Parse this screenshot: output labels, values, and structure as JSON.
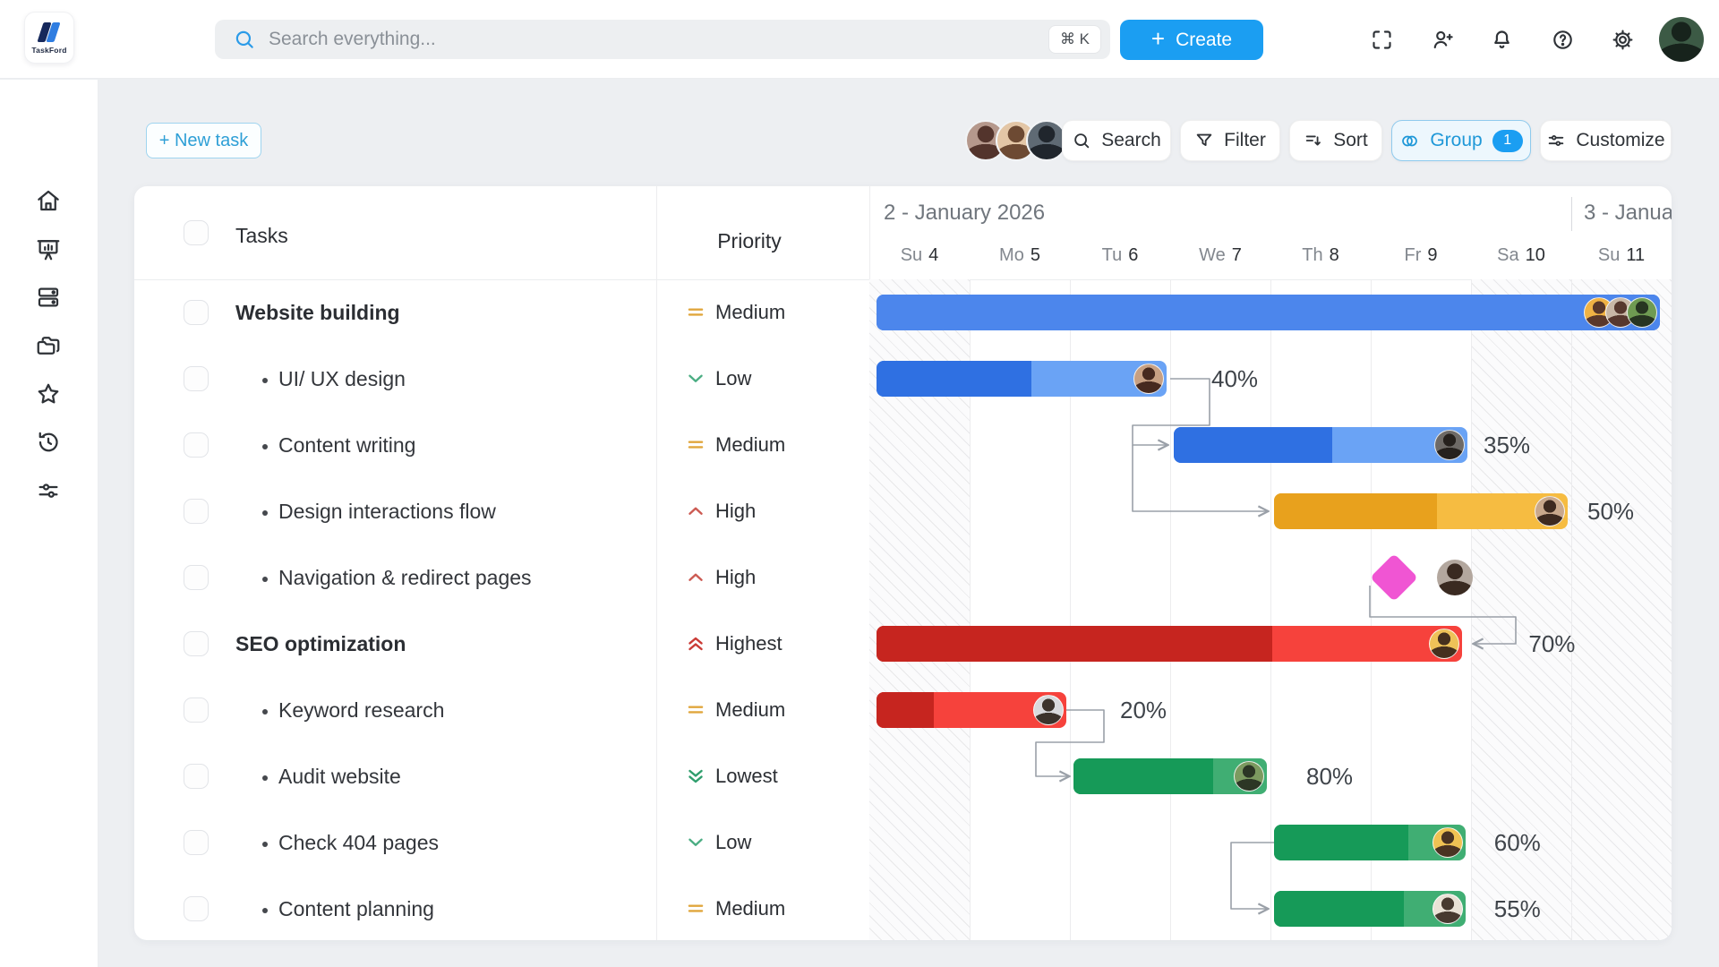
{
  "app": {
    "name": "TaskFord"
  },
  "topbar": {
    "search": {
      "placeholder": "Search everything...",
      "shortcut": "⌘ K",
      "icon": "search-icon"
    },
    "create_label": "Create",
    "action_icons": [
      "fullscreen-icon",
      "add-user-icon",
      "notifications-bell-icon",
      "help-icon",
      "settings-gear-icon"
    ],
    "user_avatar": {
      "bg": "#3c5a45",
      "fg": "#17231c"
    }
  },
  "sidebar": {
    "items": [
      "home",
      "dashboard",
      "boards",
      "projects",
      "favorites",
      "history",
      "preferences"
    ]
  },
  "toolbar": {
    "new_task_label": "+ New task",
    "assignee_avatars": [
      {
        "bg": "#b5988c",
        "fg": "#53342c"
      },
      {
        "bg": "#e3c6a6",
        "fg": "#6d4a33"
      },
      {
        "bg": "#5f6a74",
        "fg": "#20262d"
      }
    ],
    "buttons": [
      {
        "label": "Search",
        "icon": "search"
      },
      {
        "label": "Filter",
        "icon": "filter"
      },
      {
        "label": "Sort",
        "icon": "sort"
      },
      {
        "label": "Group",
        "icon": "group",
        "badge": "1",
        "active": true
      },
      {
        "label": "Customize",
        "icon": "customize"
      }
    ]
  },
  "table": {
    "tasks_header": "Tasks",
    "priority_header": "Priority"
  },
  "gantt": {
    "week_labels": [
      {
        "label": "2 - January 2026"
      },
      {
        "label": "3 - Janua"
      }
    ],
    "days": [
      {
        "dow": "Su",
        "num": "4",
        "weekend": true
      },
      {
        "dow": "Mo",
        "num": "5",
        "weekend": false
      },
      {
        "dow": "Tu",
        "num": "6",
        "weekend": false
      },
      {
        "dow": "We",
        "num": "7",
        "weekend": false
      },
      {
        "dow": "Th",
        "num": "8",
        "weekend": false
      },
      {
        "dow": "Fr",
        "num": "9",
        "weekend": false
      },
      {
        "dow": "Sa",
        "num": "10",
        "weekend": true
      },
      {
        "dow": "Su",
        "num": "11",
        "weekend": true
      }
    ]
  },
  "priorities": {
    "Medium": {
      "icon": "equals",
      "color": "#e0a63c"
    },
    "Low": {
      "icon": "chevron-down",
      "color": "#4cae84"
    },
    "High": {
      "icon": "chevron-up",
      "color": "#cc5a52"
    },
    "Highest": {
      "icon": "double-chevron-up",
      "color": "#ca3b36"
    },
    "Lowest": {
      "icon": "double-chevron-down",
      "color": "#2f9e6d"
    }
  },
  "themes": {
    "blue": {
      "dark": "#2f70e2",
      "light": "#6aa3f5"
    },
    "solid-blue": {
      "dark": "#4c86ec",
      "light": "#4c86ec"
    },
    "orange": {
      "dark": "#e8a11d",
      "light": "#f6bc41"
    },
    "red": {
      "dark": "#c6251f",
      "light": "#f6423c"
    },
    "green": {
      "dark": "#169a58",
      "light": "#40ae73"
    }
  },
  "milestone_color": "#f055d3",
  "tasks": [
    {
      "name": "Website building",
      "parent": true,
      "priority": "Medium",
      "bar": {
        "kind": "bar",
        "theme": "solid-blue",
        "start": 0,
        "end": 7.92,
        "progress": 1,
        "label": "",
        "label_offset": 0,
        "avatars": [
          {
            "bg": "#f0b244",
            "fg": "#5a382a"
          },
          {
            "bg": "#c8b7a6",
            "fg": "#57382e"
          },
          {
            "bg": "#6f9b52",
            "fg": "#273521"
          }
        ]
      }
    },
    {
      "name": "UI/ UX design",
      "parent": false,
      "priority": "Low",
      "bar": {
        "kind": "bar",
        "theme": "blue",
        "start": 0,
        "end": 3,
        "progress": 0.535,
        "label": "40%",
        "label_offset": 46,
        "avatars": [
          {
            "bg": "#c7a083",
            "fg": "#46291f"
          }
        ]
      }
    },
    {
      "name": "Content writing",
      "parent": false,
      "priority": "Medium",
      "bar": {
        "kind": "bar",
        "theme": "blue",
        "start": 3,
        "end": 6,
        "progress": 0.54,
        "label": "35%",
        "label_offset": 14,
        "avatars": [
          {
            "bg": "#6e6a66",
            "fg": "#26211d"
          }
        ]
      }
    },
    {
      "name": "Design interactions flow",
      "parent": false,
      "priority": "High",
      "bar": {
        "kind": "bar",
        "theme": "orange",
        "start": 4,
        "end": 7,
        "progress": 0.555,
        "label": "50%",
        "label_offset": 18,
        "avatars": [
          {
            "bg": "#c9a88c",
            "fg": "#3e2a20"
          }
        ]
      }
    },
    {
      "name": "Navigation & redirect pages",
      "parent": false,
      "priority": "High",
      "bar": {
        "kind": "milestone",
        "at": 5.23,
        "avatars": [
          {
            "bg": "#b3a79e",
            "fg": "#3a2a21"
          }
        ]
      }
    },
    {
      "name": "SEO optimization",
      "parent": true,
      "priority": "Highest",
      "bar": {
        "kind": "bar",
        "theme": "red",
        "start": 0,
        "end": 5.95,
        "progress": 0.675,
        "label": "70%",
        "label_offset": 70,
        "avatars": [
          {
            "bg": "#eec258",
            "fg": "#45301e"
          }
        ]
      }
    },
    {
      "name": "Keyword research",
      "parent": false,
      "priority": "Medium",
      "bar": {
        "kind": "bar",
        "theme": "red",
        "start": 0,
        "end": 2,
        "progress": 0.3,
        "label": "20%",
        "label_offset": 56,
        "avatars": [
          {
            "bg": "#d9dadd",
            "fg": "#3c332c"
          }
        ]
      }
    },
    {
      "name": "Audit website",
      "parent": false,
      "priority": "Lowest",
      "bar": {
        "kind": "bar",
        "theme": "green",
        "start": 2,
        "end": 4,
        "progress": 0.72,
        "label": "80%",
        "label_offset": 40,
        "avatars": [
          {
            "bg": "#7c9a60",
            "fg": "#2c3625"
          }
        ]
      }
    },
    {
      "name": "Check 404 pages",
      "parent": false,
      "priority": "Low",
      "bar": {
        "kind": "bar",
        "theme": "green",
        "start": 4,
        "end": 5.98,
        "progress": 0.7,
        "label": "60%",
        "label_offset": 28,
        "avatars": [
          {
            "bg": "#f0c253",
            "fg": "#4a3322"
          }
        ]
      }
    },
    {
      "name": "Content planning",
      "parent": false,
      "priority": "Medium",
      "bar": {
        "kind": "bar",
        "theme": "green",
        "start": 4,
        "end": 5.98,
        "progress": 0.68,
        "label": "55%",
        "label_offset": 28,
        "avatars": [
          {
            "bg": "#e9e2d6",
            "fg": "#473a30"
          }
        ]
      }
    }
  ]
}
